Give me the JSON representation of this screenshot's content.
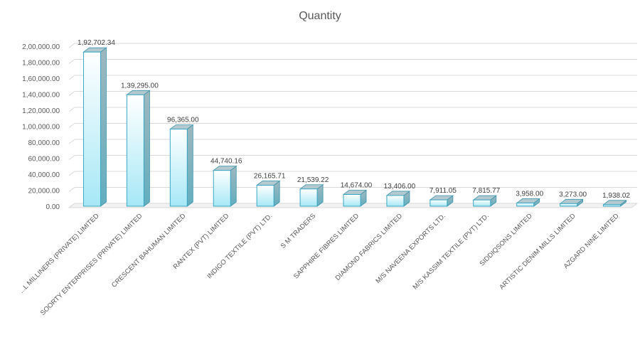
{
  "chart_data": {
    "type": "bar",
    "title": "Quantity",
    "xlabel": "",
    "ylabel": "",
    "ylim": [
      0,
      200000
    ],
    "y_ticks": [
      "0.00",
      "20,000.00",
      "40,000.00",
      "60,000.00",
      "80,000.00",
      "1,00,000.00",
      "1,20,000.00",
      "1,40,000.00",
      "1,60,000.00",
      "1,80,000.00",
      "2,00,000.00"
    ],
    "grid": true,
    "legend": "none",
    "bar_color": "#aeeaf7",
    "bar_edge_color": "#3aa7c4",
    "categories": [
      "...L MILLINERS (PRIVATE) LIMITED",
      "SOORTY ENTERPRISES (PRIVATE) LIMITED",
      "CRESCENT BAHUMAN LIMITED",
      "RANTEX (PVT) LIMITED",
      "INDIGO TEXTILE (PVT) LTD.",
      "S M TRADERS",
      "SAPPHIRE FIBRES LIMITED",
      "DIAMOND FABRICS LIMITED",
      "M/S NAVEENA EXPORTS LTD.",
      "M/S KASSIM TEXTILE (PVT) LTD.",
      "SIDDIQSONS LIMITED",
      "ARTISTIC DENIM MILLS LIMITED",
      "AZGARD NINE LIMITED"
    ],
    "values": [
      192702.34,
      139295.0,
      96365.0,
      44740.16,
      26165.71,
      21539.22,
      14674.0,
      13406.0,
      7911.05,
      7815.77,
      3958.0,
      3273.0,
      1938.02
    ],
    "value_labels": [
      "1,92,702.34",
      "1,39,295.00",
      "96,365.00",
      "44,740.16",
      "26,165.71",
      "21,539.22",
      "14,674.00",
      "13,406.00",
      "7,911.05",
      "7,815.77",
      "3,958.00",
      "3,273.00",
      "1,938.02"
    ]
  }
}
